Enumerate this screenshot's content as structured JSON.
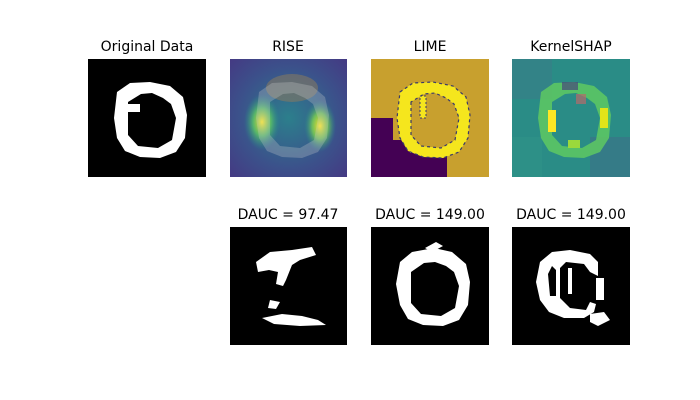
{
  "chart_data": [
    {
      "type": "image",
      "title": "Original Data",
      "style": "binary",
      "colormap": "gray",
      "content": "handwritten digit (0 / 6 shaped ring) on black background"
    },
    {
      "type": "heatmap",
      "title": "RISE",
      "colormap": "viridis",
      "overlay": "digit outline",
      "high_regions": [
        "left side of ring",
        "right side of ring"
      ]
    },
    {
      "type": "heatmap",
      "title": "LIME",
      "colormap": "viridis",
      "segments": [
        {
          "region": "digit strokes",
          "level": "high",
          "color": "#f5e61d"
        },
        {
          "region": "background upper and right",
          "level": "medium",
          "color": "#c8a02e"
        },
        {
          "region": "bottom-left block",
          "level": "low",
          "color": "#440154"
        }
      ]
    },
    {
      "type": "heatmap",
      "title": "KernelSHAP",
      "colormap": "viridis",
      "overlay": "digit outline"
    },
    {
      "type": "image",
      "title": "DAUC = 97.47",
      "method": "RISE",
      "dauc": 97.47,
      "colormap": "gray"
    },
    {
      "type": "image",
      "title": "DAUC = 149.00",
      "method": "LIME",
      "dauc": 149.0,
      "colormap": "gray"
    },
    {
      "type": "image",
      "title": "DAUC = 149.00",
      "method": "KernelSHAP",
      "dauc": 149.0,
      "colormap": "gray"
    }
  ],
  "panels": [
    {
      "title": "Original Data"
    },
    {
      "title": "RISE"
    },
    {
      "title": "LIME"
    },
    {
      "title": "KernelSHAP"
    },
    {
      "title": "DAUC = 97.47"
    },
    {
      "title": "DAUC = 149.00"
    },
    {
      "title": "DAUC = 149.00"
    }
  ]
}
